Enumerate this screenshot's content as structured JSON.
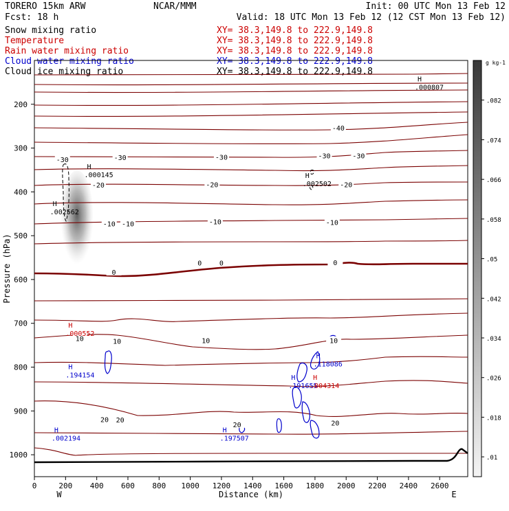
{
  "header": {
    "model": "TORERO  15km ARW",
    "org": "NCAR/MMM",
    "init": "Init: 00 UTC Mon 13 Feb 12",
    "fcst": "Fcst:   18 h",
    "valid": "Valid: 18 UTC Mon 13 Feb 12 (12 CST Mon 13 Feb 12)"
  },
  "legend": [
    {
      "name": "Snow mixing ratio",
      "xy": "XY=  38.3,149.8 to 222.9,149.8",
      "color": "#000000"
    },
    {
      "name": "Temperature",
      "xy": "XY=  38.3,149.8 to 222.9,149.8",
      "color": "#cc0000"
    },
    {
      "name": "Rain water mixing ratio",
      "xy": "XY=  38.3,149.8 to 222.9,149.8",
      "color": "#cc0000"
    },
    {
      "name": "Cloud water mixing ratio",
      "xy": "XY=  38.3,149.8 to 222.9,149.8",
      "color": "#0000cc"
    },
    {
      "name": "Cloud ice mixing ratio",
      "xy": "XY=  38.3,149.8 to 222.9,149.8",
      "color": "#000000"
    }
  ],
  "colors": {
    "temperature": "#7a0000",
    "freezing": "#7a0000",
    "rain": "#cc0000",
    "cloud": "#0000cc",
    "ice": "#000000",
    "terrain": "#000000"
  },
  "chart_data": {
    "type": "cross-section",
    "xlabel": "Distance (km)",
    "ylabel": "Pressure (hPa)",
    "xlim": [
      0,
      2780
    ],
    "ylim": [
      1050,
      100
    ],
    "xticks": [
      0,
      200,
      400,
      600,
      800,
      1000,
      1200,
      1400,
      1600,
      1800,
      2000,
      2200,
      2400,
      2600
    ],
    "yticks": [
      200,
      300,
      400,
      500,
      600,
      700,
      800,
      900,
      1000
    ],
    "left_end": "W",
    "right_end": "E",
    "colorbar": {
      "unit": "g kg-1",
      "labels": [
        ".01",
        ".018",
        ".026",
        ".034",
        ".042",
        ".05",
        ".058",
        ".066",
        ".074",
        ".082"
      ]
    },
    "isotherm_labels": [
      {
        "text": "-40",
        "x": 1950,
        "p": 254
      },
      {
        "text": "-30",
        "x": 550,
        "p": 321
      },
      {
        "text": "-30",
        "x": 1200,
        "p": 320
      },
      {
        "text": "-30",
        "x": 1860,
        "p": 317
      },
      {
        "text": "-30",
        "x": 2080,
        "p": 317
      },
      {
        "text": "-30",
        "x": 180,
        "p": 326
      },
      {
        "text": "-20",
        "x": 410,
        "p": 384
      },
      {
        "text": "-20",
        "x": 1140,
        "p": 383
      },
      {
        "text": "-20",
        "x": 2000,
        "p": 383
      },
      {
        "text": "-10",
        "x": 480,
        "p": 472
      },
      {
        "text": "-10",
        "x": 600,
        "p": 472
      },
      {
        "text": "-10",
        "x": 1160,
        "p": 468
      },
      {
        "text": "-10",
        "x": 1910,
        "p": 469
      },
      {
        "text": "0",
        "x": 1060,
        "p": 562
      },
      {
        "text": "0",
        "x": 1200,
        "p": 562
      },
      {
        "text": "0",
        "x": 1930,
        "p": 561
      },
      {
        "text": "0",
        "x": 510,
        "p": 583
      },
      {
        "text": "10",
        "x": 290,
        "p": 734
      },
      {
        "text": "10",
        "x": 530,
        "p": 740
      },
      {
        "text": "10",
        "x": 1100,
        "p": 739
      },
      {
        "text": "10",
        "x": 1920,
        "p": 739
      },
      {
        "text": "20",
        "x": 450,
        "p": 919
      },
      {
        "text": "20",
        "x": 550,
        "p": 920
      },
      {
        "text": "20",
        "x": 1300,
        "p": 931
      },
      {
        "text": "20",
        "x": 1930,
        "p": 927
      }
    ],
    "maxima": [
      {
        "value": ".000807",
        "x": 2440,
        "p": 154,
        "color": "#000000"
      },
      {
        "value": ".000145",
        "x": 320,
        "p": 354,
        "color": "#000000"
      },
      {
        "value": ".002562",
        "x": 100,
        "p": 439,
        "color": "#000000"
      },
      {
        "value": ".002502",
        "x": 1720,
        "p": 374,
        "color": "#000000"
      },
      {
        "value": ".000552",
        "x": 200,
        "p": 716,
        "color": "#cc0000"
      },
      {
        "value": ".194154",
        "x": 200,
        "p": 811,
        "color": "#0000cc"
      },
      {
        "value": ".118086",
        "x": 1790,
        "p": 786,
        "color": "#0000cc"
      },
      {
        "value": ".191655",
        "x": 1630,
        "p": 835,
        "color": "#0000cc"
      },
      {
        "value": ".004314",
        "x": 1770,
        "p": 835,
        "color": "#cc0000"
      },
      {
        "value": ".002194",
        "x": 110,
        "p": 955,
        "color": "#0000cc"
      },
      {
        "value": ".197507",
        "x": 1190,
        "p": 955,
        "color": "#0000cc"
      }
    ]
  }
}
